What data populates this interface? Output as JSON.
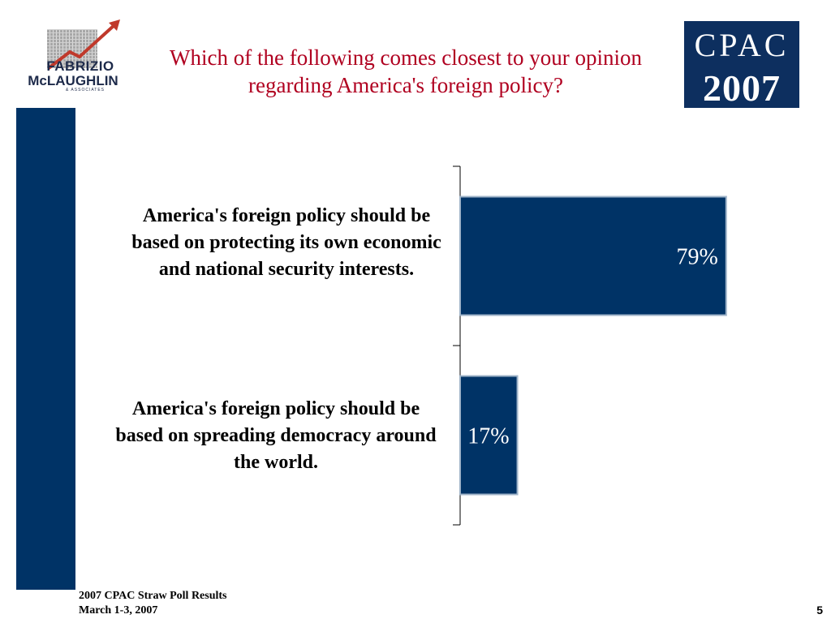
{
  "title": "Which of the following comes closest to your opinion regarding America's foreign policy?",
  "logo_left": {
    "line1": "FABRIZIO",
    "line2": "McLAUGHLIN",
    "line3": "& ASSOCIATES"
  },
  "logo_right": {
    "line1": "CPAC",
    "line2": "2007"
  },
  "colors": {
    "bar": "#003366",
    "title": "#b00020",
    "sidebar": "#003366"
  },
  "chart_data": {
    "type": "bar",
    "orientation": "horizontal",
    "categories": [
      "America's foreign policy should be based on protecting its own economic and national security interests.",
      "America's foreign policy should be based on spreading democracy around the world."
    ],
    "values": [
      79,
      17
    ],
    "value_labels": [
      "79%",
      "17%"
    ],
    "xlim": [
      0,
      100
    ],
    "grid": false,
    "legend": "none"
  },
  "footer": {
    "line1": "2007 CPAC Straw Poll Results",
    "line2": "March 1-3, 2007"
  },
  "page_number": "5"
}
